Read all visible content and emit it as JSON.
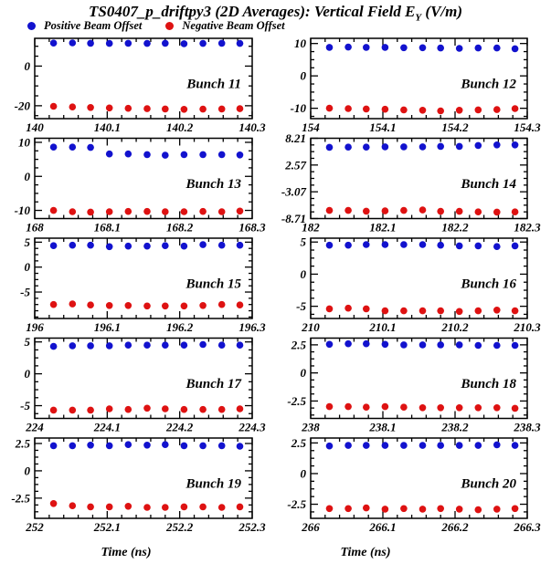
{
  "page": {
    "title": {
      "main": "TS0407_p_driftpy3 (2D Averages): Vertical Field E",
      "sub": "Y",
      "unit": " (V/m)"
    },
    "legend": [
      {
        "label": "Positive Beam Offset",
        "color": "#1212CE"
      },
      {
        "label": "Negative Beam Offset",
        "color": "#DE1212"
      }
    ],
    "xaxis_title_left": "Time (ns)",
    "xaxis_title_right": "Time (ns)",
    "colors": {
      "positive": "#1212CE",
      "negative": "#DE1212",
      "axis": "#000000",
      "background": "#FFFFFF"
    }
  },
  "chart_data": {
    "type": "scatter",
    "title": "TS0407_p_driftpy3 (2D Averages): Vertical Field E_Y (V/m)",
    "xlabel": "Time (ns)",
    "ylabel": "E_Y (V/m)",
    "legend_position": "top-left",
    "grid": false,
    "series_names": [
      "Positive Beam Offset",
      "Negative Beam Offset"
    ],
    "x_offsets": [
      0.026,
      0.052,
      0.077,
      0.103,
      0.129,
      0.155,
      0.18,
      0.206,
      0.232,
      0.258,
      0.283
    ],
    "x_span": 0.3,
    "plots": [
      {
        "label": "Bunch 11",
        "x_start": 140,
        "xlim": [
          140,
          140.3
        ],
        "x_tick_labels": [
          "140",
          "140.1",
          "140.2",
          "140.3"
        ],
        "ylim": [
          -26.5,
          14.0
        ],
        "y_minor_step": 5,
        "y_ticks": [
          {
            "value": 0,
            "label": "0"
          },
          {
            "value": -20,
            "label": "-20"
          }
        ],
        "positive": [
          11.6,
          11.7,
          11.5,
          11.4,
          11.5,
          11.4,
          11.5,
          11.3,
          11.4,
          11.5,
          11.4
        ],
        "negative": [
          -20.3,
          -20.6,
          -20.9,
          -21.1,
          -21.3,
          -21.5,
          -21.6,
          -21.8,
          -21.7,
          -21.6,
          -21.5
        ]
      },
      {
        "label": "Bunch 12",
        "x_start": 154,
        "xlim": [
          154,
          154.3
        ],
        "x_tick_labels": [
          "154",
          "154.1",
          "154.2",
          "154.3"
        ],
        "ylim": [
          -13.2,
          11.6
        ],
        "y_minor_step": 2.5,
        "y_ticks": [
          {
            "value": 10,
            "label": "10"
          },
          {
            "value": 0,
            "label": "0"
          },
          {
            "value": -10,
            "label": "-10"
          }
        ],
        "positive": [
          8.8,
          8.9,
          8.8,
          8.8,
          8.7,
          8.7,
          8.6,
          8.5,
          8.6,
          8.6,
          8.4
        ],
        "negative": [
          -10.0,
          -10.1,
          -10.2,
          -10.3,
          -10.5,
          -10.6,
          -10.8,
          -10.6,
          -10.5,
          -10.4,
          -10.1
        ]
      },
      {
        "label": "Bunch 13",
        "x_start": 168,
        "xlim": [
          168,
          168.3
        ],
        "x_tick_labels": [
          "168",
          "168.1",
          "168.2",
          "168.3"
        ],
        "ylim": [
          -12.4,
          11.2
        ],
        "y_minor_step": 2.5,
        "y_ticks": [
          {
            "value": 10,
            "label": "10"
          },
          {
            "value": 0,
            "label": "0"
          },
          {
            "value": -10,
            "label": "-10"
          }
        ],
        "positive": [
          8.6,
          8.6,
          8.5,
          6.6,
          6.6,
          6.4,
          6.2,
          6.4,
          6.4,
          6.4,
          6.3
        ],
        "negative": [
          -10.0,
          -10.4,
          -10.5,
          -10.4,
          -10.3,
          -10.3,
          -10.4,
          -10.4,
          -10.3,
          -10.4,
          -10.2
        ]
      },
      {
        "label": "Bunch 14",
        "x_start": 182,
        "xlim": [
          182,
          182.3
        ],
        "x_tick_labels": [
          "182",
          "182.1",
          "182.2",
          "182.3"
        ],
        "ylim": [
          -8.71,
          8.21
        ],
        "y_minor_step": 1.41,
        "y_ticks": [
          {
            "value": 8.21,
            "label": "8.21"
          },
          {
            "value": 2.57,
            "label": "2.57"
          },
          {
            "value": -3.07,
            "label": "-3.07"
          },
          {
            "value": -8.71,
            "label": "-8.71"
          }
        ],
        "positive": [
          6.3,
          6.35,
          6.35,
          6.4,
          6.4,
          6.4,
          6.5,
          6.5,
          6.7,
          6.8,
          6.8
        ],
        "negative": [
          -7.0,
          -7.0,
          -7.15,
          -7.1,
          -7.0,
          -6.9,
          -7.2,
          -7.2,
          -7.3,
          -7.35,
          -7.3
        ]
      },
      {
        "label": "Bunch 15",
        "x_start": 196,
        "xlim": [
          196,
          196.3
        ],
        "x_tick_labels": [
          "196",
          "196.1",
          "196.2",
          "196.3"
        ],
        "ylim": [
          -10.3,
          5.8
        ],
        "y_minor_step": 1.25,
        "y_ticks": [
          {
            "value": 5,
            "label": "5"
          },
          {
            "value": 0,
            "label": "0"
          },
          {
            "value": -5,
            "label": "-5"
          }
        ],
        "positive": [
          4.3,
          4.4,
          4.4,
          4.1,
          4.2,
          4.2,
          4.3,
          4.2,
          4.5,
          4.4,
          4.4
        ],
        "negative": [
          -7.5,
          -7.4,
          -7.6,
          -7.7,
          -7.7,
          -7.8,
          -7.8,
          -7.8,
          -7.7,
          -7.5,
          -7.6
        ]
      },
      {
        "label": "Bunch 16",
        "x_start": 210,
        "xlim": [
          210,
          210.3
        ],
        "x_tick_labels": [
          "210",
          "210.1",
          "210.2",
          "210.3"
        ],
        "ylim": [
          -6.9,
          5.6
        ],
        "y_minor_step": 1.25,
        "y_ticks": [
          {
            "value": 5,
            "label": "5"
          },
          {
            "value": 0,
            "label": "0"
          },
          {
            "value": -5,
            "label": "-5"
          }
        ],
        "positive": [
          4.5,
          4.5,
          4.6,
          4.6,
          4.6,
          4.6,
          4.5,
          4.4,
          4.4,
          4.3,
          4.4
        ],
        "negative": [
          -5.4,
          -5.3,
          -5.4,
          -5.7,
          -5.7,
          -5.7,
          -5.7,
          -5.8,
          -5.7,
          -5.6,
          -5.7
        ]
      },
      {
        "label": "Bunch 17",
        "x_start": 224,
        "xlim": [
          224,
          224.3
        ],
        "x_tick_labels": [
          "224",
          "224.1",
          "224.2",
          "224.3"
        ],
        "ylim": [
          -7.0,
          5.6
        ],
        "y_minor_step": 1.25,
        "y_ticks": [
          {
            "value": 5,
            "label": "5"
          },
          {
            "value": 0,
            "label": "0"
          },
          {
            "value": -5,
            "label": "-5"
          }
        ],
        "positive": [
          4.3,
          4.4,
          4.4,
          4.4,
          4.5,
          4.5,
          4.5,
          4.5,
          4.6,
          4.5,
          4.5
        ],
        "negative": [
          -5.7,
          -5.7,
          -5.7,
          -5.5,
          -5.6,
          -5.4,
          -5.5,
          -5.6,
          -5.6,
          -5.6,
          -5.5
        ]
      },
      {
        "label": "Bunch 18",
        "x_start": 238,
        "xlim": [
          238,
          238.3
        ],
        "x_tick_labels": [
          "238",
          "238.1",
          "238.2",
          "238.3"
        ],
        "ylim": [
          -4.05,
          3.1
        ],
        "y_minor_step": 0.625,
        "y_ticks": [
          {
            "value": 2.5,
            "label": "2.5"
          },
          {
            "value": 0,
            "label": "0"
          },
          {
            "value": -2.5,
            "label": "-2.5"
          }
        ],
        "positive": [
          2.55,
          2.6,
          2.6,
          2.55,
          2.5,
          2.5,
          2.5,
          2.5,
          2.45,
          2.45,
          2.45
        ],
        "negative": [
          -3.0,
          -3.0,
          -3.05,
          -3.0,
          -3.05,
          -3.1,
          -3.1,
          -3.1,
          -3.1,
          -3.1,
          -3.15
        ]
      },
      {
        "label": "Bunch 19",
        "x_start": 252,
        "xlim": [
          252,
          252.3
        ],
        "x_tick_labels": [
          "252",
          "252.1",
          "252.2",
          "252.3"
        ],
        "ylim": [
          -4.35,
          3.0
        ],
        "y_minor_step": 0.625,
        "y_ticks": [
          {
            "value": 2.5,
            "label": "2.5"
          },
          {
            "value": 0,
            "label": "0"
          },
          {
            "value": -2.5,
            "label": "-2.5"
          }
        ],
        "positive": [
          2.3,
          2.3,
          2.35,
          2.3,
          2.4,
          2.35,
          2.4,
          2.3,
          2.3,
          2.3,
          2.25
        ],
        "negative": [
          -3.0,
          -3.2,
          -3.3,
          -3.3,
          -3.25,
          -3.35,
          -3.35,
          -3.3,
          -3.3,
          -3.35,
          -3.3
        ]
      },
      {
        "label": "Bunch 20",
        "x_start": 266,
        "xlim": [
          266,
          266.3
        ],
        "x_tick_labels": [
          "266",
          "266.1",
          "266.2",
          "266.3"
        ],
        "ylim": [
          -3.65,
          2.9
        ],
        "y_minor_step": 0.625,
        "y_ticks": [
          {
            "value": 2.5,
            "label": "2.5"
          },
          {
            "value": 0,
            "label": "0"
          },
          {
            "value": -2.5,
            "label": "-2.5"
          }
        ],
        "positive": [
          2.25,
          2.3,
          2.3,
          2.3,
          2.3,
          2.3,
          2.3,
          2.3,
          2.3,
          2.35,
          2.3
        ],
        "negative": [
          -2.85,
          -2.85,
          -2.8,
          -2.9,
          -2.85,
          -2.9,
          -2.85,
          -2.9,
          -2.95,
          -2.9,
          -2.85
        ]
      }
    ]
  }
}
